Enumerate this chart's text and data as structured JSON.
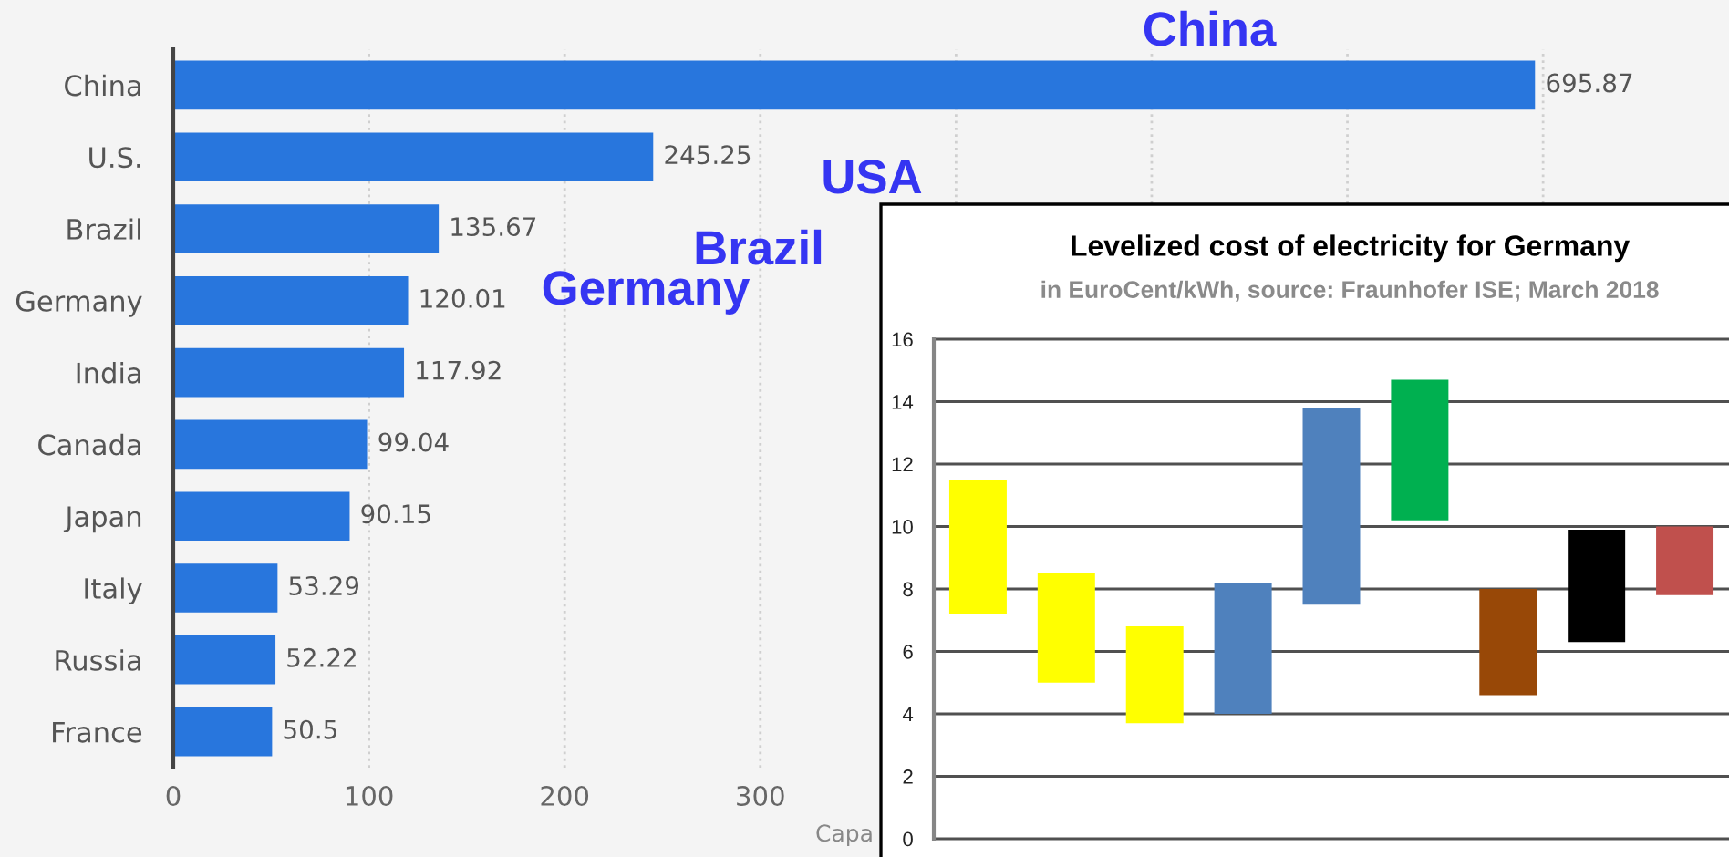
{
  "chart_data": [
    {
      "type": "bar",
      "orientation": "horizontal",
      "categories": [
        "China",
        "U.S.",
        "Brazil",
        "Germany",
        "India",
        "Canada",
        "Japan",
        "Italy",
        "Russia",
        "France"
      ],
      "values": [
        695.87,
        245.25,
        135.67,
        120.01,
        117.92,
        99.04,
        90.15,
        53.29,
        52.22,
        50.5
      ],
      "color": "#2876dd",
      "xlim": [
        0,
        795
      ],
      "xticks": [
        0,
        100,
        200,
        300,
        {
          "value": 400,
          "label": null
        },
        {
          "value": 500,
          "label": null
        },
        {
          "value": 600,
          "label": null
        },
        {
          "value": 700,
          "label": null
        }
      ],
      "grid": "x",
      "data_labels": true,
      "xlabel": "Capa",
      "annotations": [
        "China",
        "USA",
        "Brazil",
        "Germany"
      ]
    },
    {
      "type": "bar",
      "title": "Levelized cost of electricity for Germany",
      "subtitle": "in EuroCent/kWh, source: Fraunhofer ISE; March 2018",
      "categories": [
        null,
        null,
        null,
        null,
        null,
        null,
        null,
        null,
        null
      ],
      "base": [
        7.2,
        5.0,
        3.7,
        4.0,
        7.5,
        10.2,
        4.6,
        6.3,
        7.8
      ],
      "values": [
        4.3,
        3.5,
        3.1,
        4.2,
        6.3,
        4.5,
        3.4,
        3.6,
        2.2
      ],
      "colors": [
        "#ffff00",
        "#ffff00",
        "#ffff00",
        "#4f81bd",
        "#4f81bd",
        "#00b050",
        "#984807",
        "#000000",
        "#c0504d"
      ],
      "ylim": [
        0,
        16
      ],
      "yticks": [
        0,
        2,
        4,
        6,
        8,
        10,
        12,
        14,
        16
      ],
      "grid": "y",
      "tick_labels": "y"
    }
  ]
}
